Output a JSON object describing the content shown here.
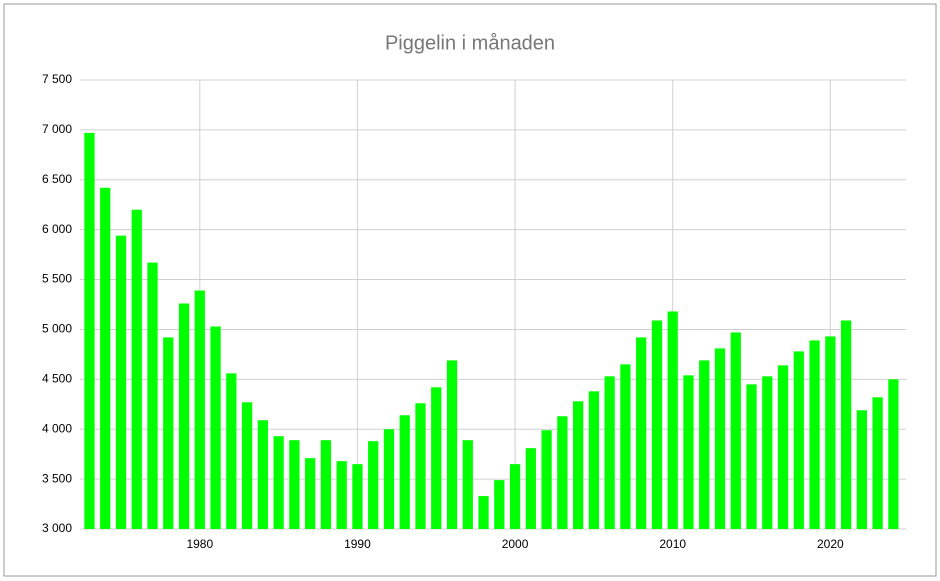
{
  "chart_data": {
    "type": "bar",
    "title": "Piggelin i månaden",
    "x": [
      1973,
      1974,
      1975,
      1976,
      1977,
      1978,
      1979,
      1980,
      1981,
      1982,
      1983,
      1984,
      1985,
      1986,
      1987,
      1988,
      1989,
      1990,
      1991,
      1992,
      1993,
      1994,
      1995,
      1996,
      1997,
      1998,
      1999,
      2000,
      2001,
      2002,
      2003,
      2004,
      2005,
      2006,
      2007,
      2008,
      2009,
      2010,
      2011,
      2012,
      2013,
      2014,
      2015,
      2016,
      2017,
      2018,
      2019,
      2020,
      2021,
      2022,
      2023,
      2024
    ],
    "values": [
      6970,
      6420,
      5940,
      6200,
      5670,
      4920,
      5260,
      5390,
      5030,
      4560,
      4270,
      4090,
      3930,
      3890,
      3710,
      3890,
      3680,
      3650,
      3880,
      4000,
      4140,
      4260,
      4420,
      4690,
      3890,
      3330,
      3490,
      3650,
      3810,
      3990,
      4130,
      4280,
      4380,
      4530,
      4650,
      4920,
      5090,
      5180,
      4540,
      4690,
      4810,
      4970,
      4450,
      4530,
      4640,
      4780,
      4890,
      4930,
      5090,
      4190,
      4320,
      4500
    ],
    "color": "#00ff00",
    "xlim": [
      1972.4,
      2024.8
    ],
    "xticks": [
      1980,
      1990,
      2000,
      2010,
      2020
    ],
    "ylim": [
      3000,
      7500
    ],
    "yticks": [
      {
        "value": 3000,
        "label": "3 000"
      },
      {
        "value": 3500,
        "label": "3 500"
      },
      {
        "value": 4000,
        "label": "4 000"
      },
      {
        "value": 4500,
        "label": "4 500"
      },
      {
        "value": 5000,
        "label": "5 000"
      },
      {
        "value": 5500,
        "label": "5 500"
      },
      {
        "value": 6000,
        "label": "6 000"
      },
      {
        "value": 6500,
        "label": "6 500"
      },
      {
        "value": 7000,
        "label": "7 000"
      },
      {
        "value": 7500,
        "label": "7 500"
      }
    ],
    "grid": true
  }
}
